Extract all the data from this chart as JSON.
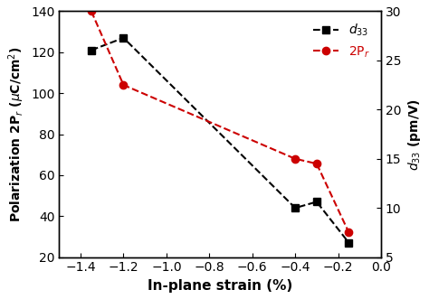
{
  "title": "",
  "xlabel": "In-plane strain (%)",
  "ylabel_left": "Polarization 2P$_r$ ($\\mu$C/cm$^2$)",
  "ylabel_right": "$d_{33}$ (pm/V)",
  "black_x": [
    -1.35,
    -1.2,
    -0.4,
    -0.3,
    -0.15
  ],
  "black_y": [
    121,
    127,
    44,
    47,
    27
  ],
  "red_x": [
    -1.35,
    -1.2,
    -0.4,
    -0.3,
    -0.15
  ],
  "red_y": [
    30,
    22.5,
    15,
    14.5,
    7.5
  ],
  "ylim_left": [
    20,
    140
  ],
  "ylim_right": [
    5,
    30
  ],
  "xlim": [
    -1.5,
    0.0
  ],
  "xticks": [
    -1.4,
    -1.2,
    -1.0,
    -0.8,
    -0.6,
    -0.4,
    -0.2,
    0.0
  ],
  "yticks_left": [
    20,
    40,
    60,
    80,
    100,
    120,
    140
  ],
  "yticks_right": [
    5,
    10,
    15,
    20,
    25,
    30
  ],
  "black_color": "#000000",
  "red_color": "#cc0000",
  "background_color": "#ffffff",
  "linewidth": 1.5,
  "markersize": 6
}
